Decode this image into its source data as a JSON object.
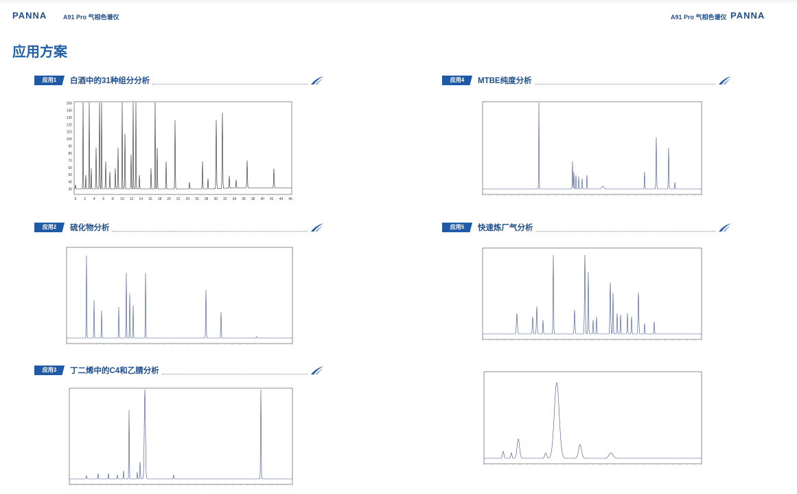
{
  "header": {
    "brand": "PANNA",
    "product": "A91 Pro 气相色谱仪"
  },
  "page_title": "应用方案",
  "sections": [
    {
      "badge": "应用1",
      "title": "白酒中的31种组分分析"
    },
    {
      "badge": "应用2",
      "title": "硫化物分析"
    },
    {
      "badge": "应用3",
      "title": "丁二烯中的C4和乙腈分析"
    },
    {
      "badge": "应用4",
      "title": "MTBE纯度分析"
    },
    {
      "badge": "应用5",
      "title": "快速炼厂气分析"
    }
  ],
  "chart1": {
    "y_ticks": [
      150,
      140,
      130,
      120,
      110,
      100,
      90,
      80,
      70,
      60,
      50,
      40,
      30
    ],
    "x_ticks": [
      0,
      2,
      4,
      6,
      8,
      10,
      12,
      14,
      16,
      18,
      20,
      22,
      24,
      26,
      28,
      30,
      32,
      34,
      36,
      38,
      40,
      42,
      44,
      46
    ]
  }
}
